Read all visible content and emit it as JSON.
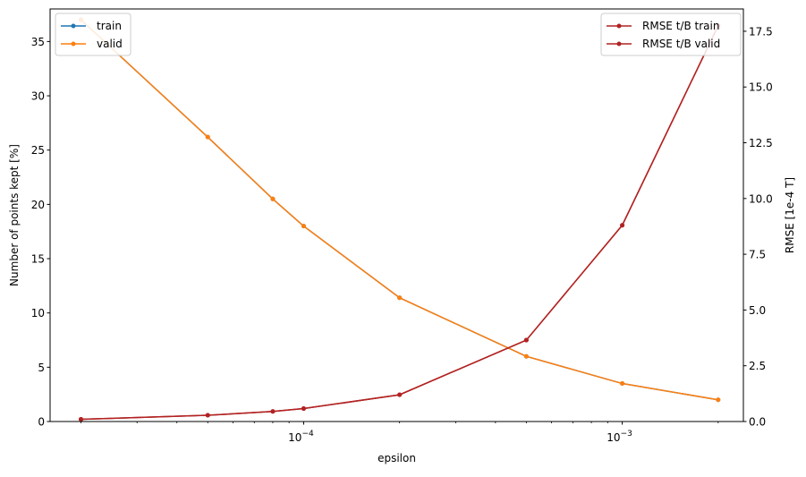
{
  "chart_data": {
    "type": "line",
    "xlabel": "epsilon",
    "ylabel_left": "Number of points kept [%]",
    "ylabel_right": "RMSE [1e-4 T]",
    "x_scale": "log",
    "xlim": [
      1.6e-05,
      0.0024
    ],
    "x_ticks": [
      {
        "value": 0.0001,
        "base": "10",
        "exp": "−4"
      },
      {
        "value": 0.001,
        "base": "10",
        "exp": "−3"
      }
    ],
    "ylim_left": [
      0,
      38
    ],
    "y_ticks_left": [
      0,
      5,
      10,
      15,
      20,
      25,
      30,
      35
    ],
    "ylim_right": [
      0,
      18.5
    ],
    "y_ticks_right": [
      0.0,
      2.5,
      5.0,
      7.5,
      10.0,
      12.5,
      15.0,
      17.5
    ],
    "x": [
      2e-05,
      5e-05,
      8e-05,
      0.0001,
      0.0002,
      0.0005,
      0.001,
      0.002
    ],
    "series_left": [
      {
        "name": "train",
        "color": "#1f77b4",
        "values": [
          37.0,
          26.2,
          20.5,
          18.0,
          11.4,
          6.0,
          3.5,
          2.0
        ]
      },
      {
        "name": "valid",
        "color": "#ff7f0e",
        "values": [
          37.0,
          26.2,
          20.5,
          18.0,
          11.4,
          6.0,
          3.5,
          2.0
        ]
      }
    ],
    "series_right": [
      {
        "name": "RMSE t/B train",
        "color": "#b22222",
        "values": [
          0.1,
          0.28,
          0.45,
          0.58,
          1.2,
          3.65,
          8.8,
          17.75
        ]
      },
      {
        "name": "RMSE t/B valid",
        "color": "#b22222",
        "values": [
          0.1,
          0.28,
          0.45,
          0.58,
          1.2,
          3.65,
          8.8,
          17.75
        ]
      }
    ],
    "legend_left_placement": "upper left",
    "legend_right_placement": "upper right",
    "grid": false
  }
}
